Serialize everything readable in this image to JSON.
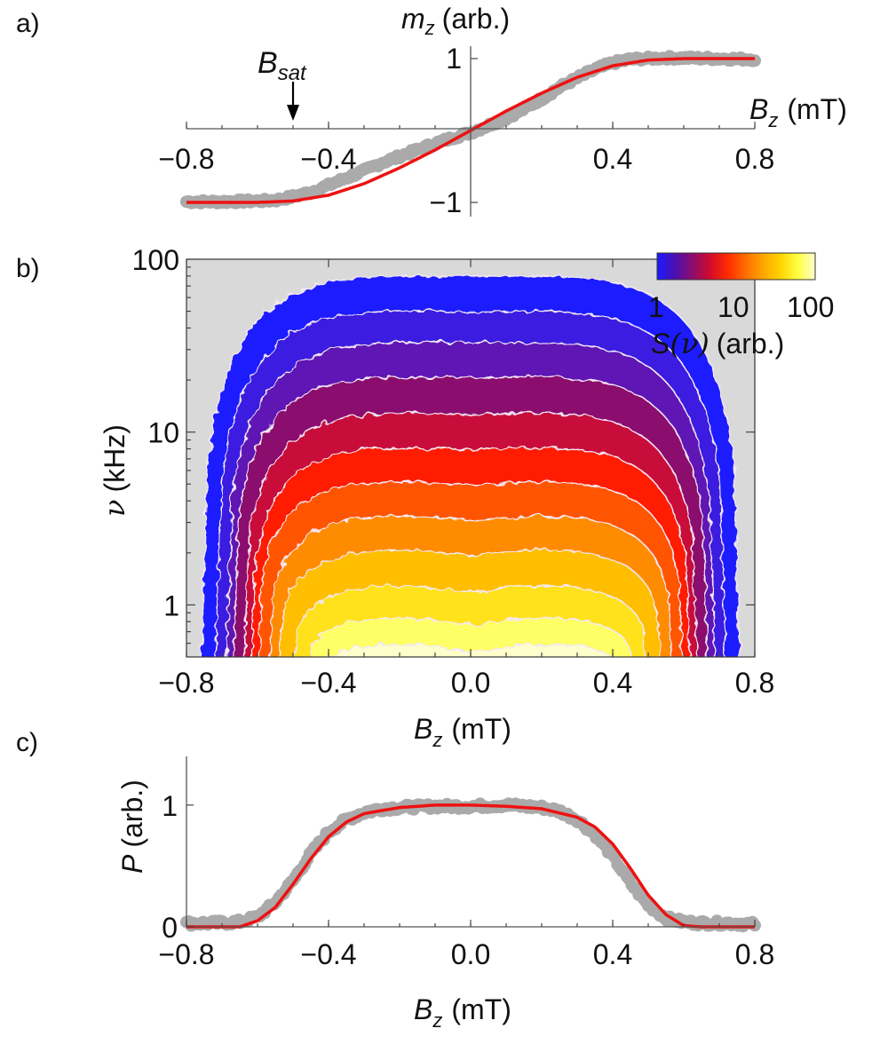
{
  "figure": {
    "panel_labels": {
      "a": "a)",
      "b": "b)",
      "c": "c)"
    }
  },
  "chart_data": [
    {
      "id": "a",
      "type": "scatter",
      "panel_label": "a)",
      "title": "",
      "ylabel_var": "m",
      "ylabel_sub": "z",
      "ylabel_unit": "(arb.)",
      "xlabel_var": "B",
      "xlabel_sub": "z",
      "xlabel_unit": "(mT)",
      "xlim": [
        -0.8,
        0.8
      ],
      "ylim": [
        -1.1,
        1.1
      ],
      "xticks": [
        -0.8,
        -0.4,
        0.4,
        0.8
      ],
      "xtick_labels": [
        "−0.8",
        "−0.4",
        "0.4",
        "0.8"
      ],
      "yticks": [
        -1,
        1
      ],
      "ytick_labels": [
        "−1",
        "1"
      ],
      "annotation": {
        "var": "B",
        "sub": "sat",
        "x": -0.5
      },
      "saturation_field": 0.5,
      "series": [
        {
          "name": "measured",
          "color": "#aaaaaa",
          "style": "dots",
          "x": [
            -0.8,
            -0.7,
            -0.6,
            -0.55,
            -0.5,
            -0.45,
            -0.4,
            -0.35,
            -0.3,
            -0.25,
            -0.2,
            -0.15,
            -0.1,
            -0.05,
            0.0,
            0.05,
            0.1,
            0.15,
            0.2,
            0.25,
            0.3,
            0.35,
            0.4,
            0.45,
            0.5,
            0.55,
            0.6,
            0.7,
            0.8
          ],
          "y": [
            -0.99,
            -0.99,
            -0.98,
            -0.97,
            -0.92,
            -0.86,
            -0.76,
            -0.66,
            -0.56,
            -0.45,
            -0.36,
            -0.27,
            -0.18,
            -0.1,
            -0.03,
            0.07,
            0.17,
            0.3,
            0.44,
            0.6,
            0.73,
            0.85,
            0.94,
            0.99,
            1.0,
            1.01,
            1.01,
            1.0,
            0.99
          ]
        },
        {
          "name": "fit",
          "color": "#ee1111",
          "style": "line",
          "x": [
            -0.8,
            -0.6,
            -0.5,
            -0.4,
            -0.3,
            -0.2,
            -0.1,
            0.0,
            0.1,
            0.2,
            0.3,
            0.4,
            0.5,
            0.6,
            0.8
          ],
          "y": [
            -1.0,
            -1.0,
            -0.98,
            -0.9,
            -0.74,
            -0.52,
            -0.27,
            0.0,
            0.27,
            0.52,
            0.74,
            0.9,
            0.98,
            1.0,
            1.0
          ]
        }
      ]
    },
    {
      "id": "b",
      "type": "heatmap",
      "panel_label": "b)",
      "xlabel_var": "B",
      "xlabel_sub": "z",
      "xlabel_unit": "(mT)",
      "ylabel_var": "ν",
      "ylabel_unit": "(kHz)",
      "xlim": [
        -0.8,
        0.8
      ],
      "ylim": [
        0.5,
        100
      ],
      "yscale": "log",
      "xticks": [
        -0.8,
        -0.4,
        0.0,
        0.4,
        0.8
      ],
      "xtick_labels": [
        "−0.8",
        "−0.4",
        "0.0",
        "0.4",
        "0.8"
      ],
      "yticks": [
        1,
        10,
        100
      ],
      "ytick_labels": [
        "1",
        "10",
        "100"
      ],
      "background_color": "#d9d9d9",
      "colorbar": {
        "label_var": "S",
        "label_arg": "(ν)",
        "label_unit": "(arb.)",
        "scale": "log",
        "range": [
          1,
          100
        ],
        "tick_labels": [
          "1",
          "10",
          "100"
        ],
        "colors": [
          "#1a1aff",
          "#4b0fb3",
          "#8b0d6e",
          "#d10a2e",
          "#ff2a00",
          "#ff6a00",
          "#ffa500",
          "#ffd200",
          "#ffff40",
          "#ffffcc"
        ]
      },
      "contour_levels": [
        {
          "level": 1.0,
          "color": "#1a1aff",
          "peak_khz": 80,
          "edge_mT": 0.76,
          "dip": 0.0
        },
        {
          "level": 1.6,
          "color": "#3a1ae0",
          "peak_khz": 50,
          "edge_mT": 0.72,
          "dip": 0.0
        },
        {
          "level": 2.5,
          "color": "#5e14b4",
          "peak_khz": 33,
          "edge_mT": 0.69,
          "dip": 0.0
        },
        {
          "level": 4.0,
          "color": "#8b0d6e",
          "peak_khz": 21,
          "edge_mT": 0.67,
          "dip": 0.02
        },
        {
          "level": 6.3,
          "color": "#c8083a",
          "peak_khz": 13,
          "edge_mT": 0.64,
          "dip": 0.03
        },
        {
          "level": 10,
          "color": "#ff1a00",
          "peak_khz": 8.2,
          "edge_mT": 0.62,
          "dip": 0.04
        },
        {
          "level": 16,
          "color": "#ff5500",
          "peak_khz": 5.2,
          "edge_mT": 0.6,
          "dip": 0.05
        },
        {
          "level": 25,
          "color": "#ff8c00",
          "peak_khz": 3.3,
          "edge_mT": 0.57,
          "dip": 0.06
        },
        {
          "level": 40,
          "color": "#ffbe00",
          "peak_khz": 2.1,
          "edge_mT": 0.54,
          "dip": 0.07
        },
        {
          "level": 63,
          "color": "#ffe21a",
          "peak_khz": 1.3,
          "edge_mT": 0.5,
          "dip": 0.08
        },
        {
          "level": 100,
          "color": "#ffff66",
          "peak_khz": 0.85,
          "edge_mT": 0.46,
          "dip": 0.09
        },
        {
          "level": 160,
          "color": "#ffffcc",
          "peak_khz": 0.6,
          "edge_mT": 0.42,
          "dip": 0.1
        }
      ]
    },
    {
      "id": "c",
      "type": "scatter",
      "panel_label": "c)",
      "xlabel_var": "B",
      "xlabel_sub": "z",
      "xlabel_unit": "(mT)",
      "ylabel_var": "P",
      "ylabel_unit": "(arb.)",
      "xlim": [
        -0.8,
        0.8
      ],
      "ylim": [
        0,
        1.4
      ],
      "xticks": [
        -0.8,
        -0.4,
        0.0,
        0.4,
        0.8
      ],
      "xtick_labels": [
        "−0.8",
        "−0.4",
        "0.0",
        "0.4",
        "0.8"
      ],
      "yticks": [
        0,
        1
      ],
      "ytick_labels": [
        "0",
        "1"
      ],
      "series": [
        {
          "name": "measured",
          "color": "#aaaaaa",
          "style": "dots",
          "x": [
            -0.8,
            -0.72,
            -0.65,
            -0.6,
            -0.55,
            -0.5,
            -0.45,
            -0.4,
            -0.35,
            -0.3,
            -0.25,
            -0.2,
            -0.1,
            0.0,
            0.1,
            0.2,
            0.25,
            0.3,
            0.35,
            0.4,
            0.45,
            0.5,
            0.55,
            0.6,
            0.65,
            0.72,
            0.8
          ],
          "y": [
            0.03,
            0.03,
            0.04,
            0.08,
            0.2,
            0.38,
            0.6,
            0.78,
            0.88,
            0.94,
            0.97,
            0.98,
            0.99,
            0.99,
            1.0,
            0.98,
            0.95,
            0.88,
            0.76,
            0.58,
            0.36,
            0.18,
            0.07,
            0.04,
            0.03,
            0.03,
            0.02
          ]
        },
        {
          "name": "fit",
          "color": "#ee1111",
          "style": "line",
          "x": [
            -0.8,
            -0.65,
            -0.6,
            -0.55,
            -0.5,
            -0.45,
            -0.4,
            -0.35,
            -0.3,
            -0.2,
            -0.1,
            0.0,
            0.1,
            0.2,
            0.3,
            0.35,
            0.4,
            0.45,
            0.5,
            0.55,
            0.6,
            0.65,
            0.8
          ],
          "y": [
            0.0,
            0.0,
            0.05,
            0.16,
            0.35,
            0.56,
            0.74,
            0.86,
            0.93,
            0.98,
            1.0,
            1.0,
            0.99,
            0.97,
            0.9,
            0.82,
            0.68,
            0.48,
            0.26,
            0.1,
            0.01,
            0.0,
            0.0
          ]
        }
      ]
    }
  ]
}
